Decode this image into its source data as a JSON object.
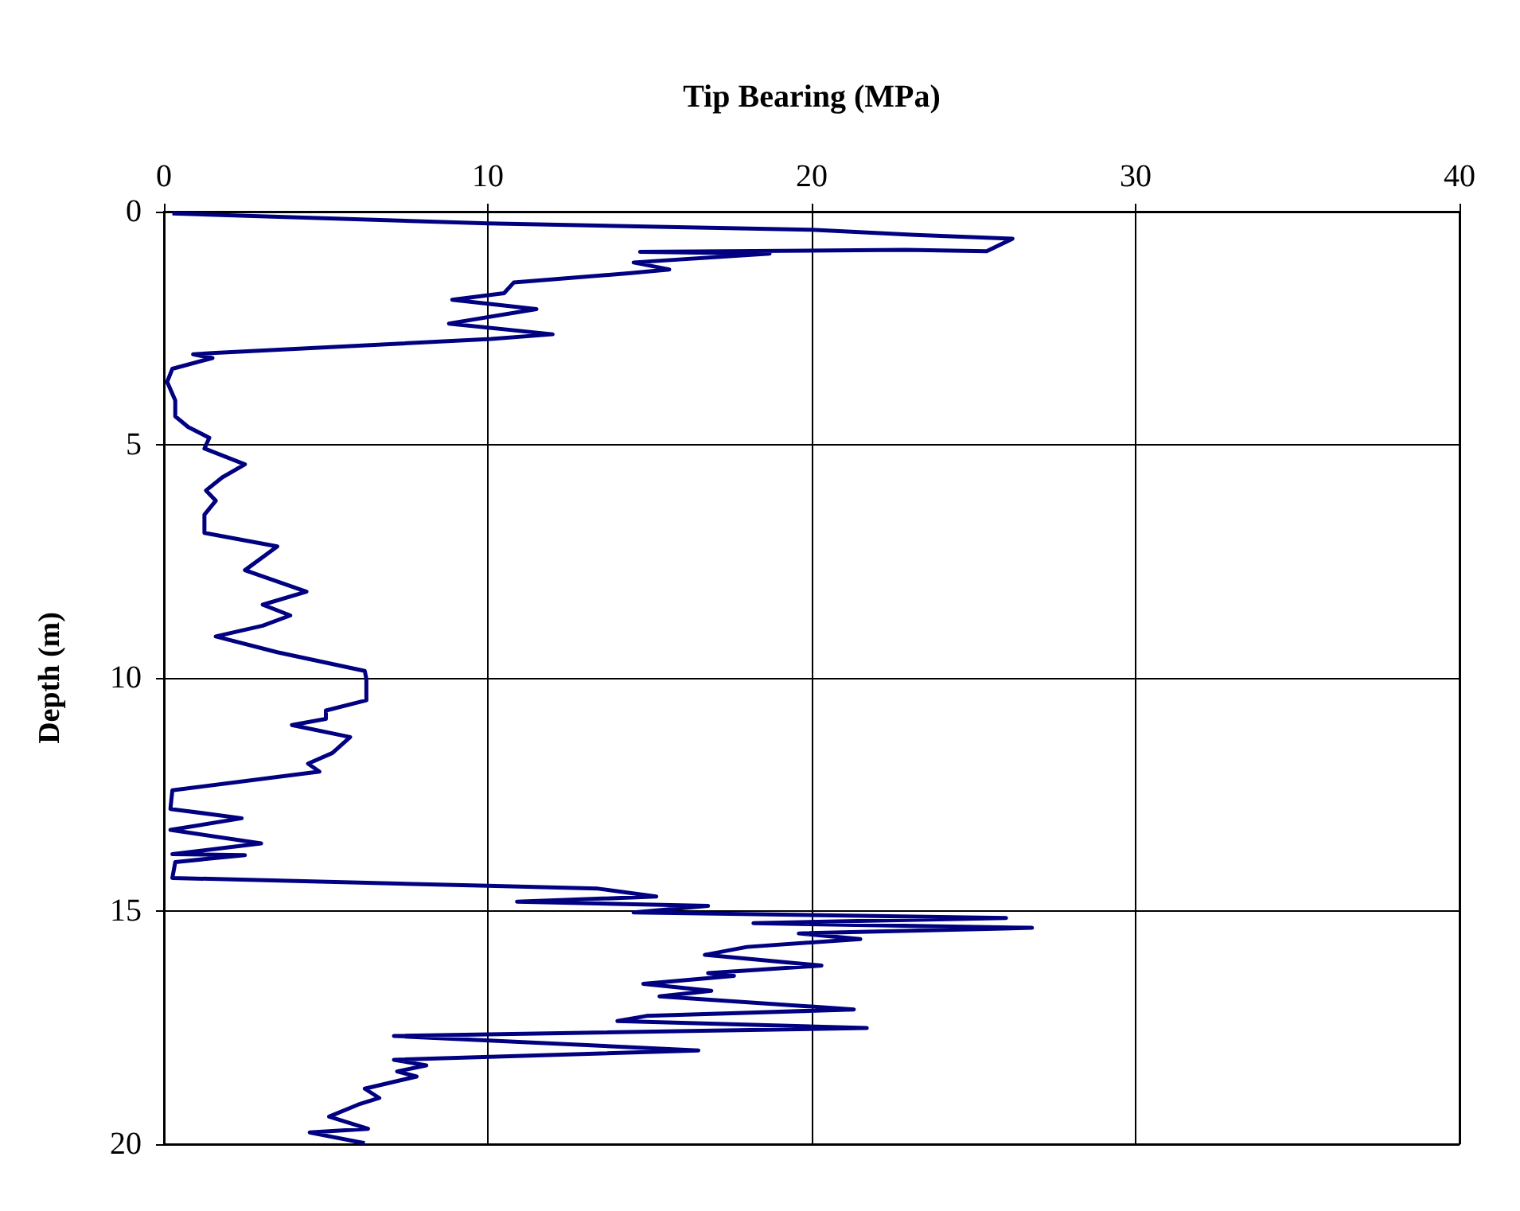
{
  "chart_data": {
    "type": "line",
    "xlabel": "Tip Bearing (MPa)",
    "ylabel": "Depth (m)",
    "xlim": [
      0,
      40
    ],
    "xticks": [
      0,
      10,
      20,
      30,
      40
    ],
    "ylim": [
      20,
      0
    ],
    "yticks": [
      0,
      5,
      10,
      15,
      20
    ],
    "grid": true,
    "marker": "none",
    "line_style": "solid",
    "series": [
      {
        "color": "#000080",
        "x": [
          0.26,
          10,
          20,
          23.2,
          26.2,
          25.4,
          22.9,
          14.7,
          18.7,
          14.5,
          15.6,
          14.4,
          10.8,
          10.5,
          8.9,
          11.5,
          8.8,
          12.0,
          10.1,
          1.6,
          0.9,
          1.5,
          0.26,
          0.1,
          0.35,
          0.35,
          0.75,
          1.4,
          1.25,
          2.5,
          1.8,
          1.3,
          1.6,
          1.25,
          1.25,
          3.5,
          2.5,
          4.4,
          3.05,
          3.9,
          3.05,
          1.6,
          3.5,
          6.2,
          6.25,
          6.25,
          5.0,
          5.0,
          3.95,
          5.75,
          5.2,
          4.45,
          4.8,
          0.26,
          0.2,
          2.4,
          0.2,
          3.0,
          0.26,
          2.5,
          0.35,
          0.26,
          10,
          13.4,
          15.2,
          10.9,
          16.8,
          14.5,
          26.0,
          18.2,
          26.8,
          19.6,
          21.5,
          18.0,
          16.7,
          20.3,
          16.8,
          17.6,
          14.8,
          16.9,
          15.3,
          21.3,
          14.9,
          14.0,
          21.7,
          7.1,
          16.5,
          7.1,
          8.1,
          7.2,
          7.8,
          6.2,
          6.65,
          6.0,
          5.1,
          6.3,
          4.5,
          6.2
        ],
        "values": [
          0.04,
          0.25,
          0.39,
          0.5,
          0.58,
          0.85,
          0.82,
          0.86,
          0.9,
          1.09,
          1.24,
          1.32,
          1.52,
          1.75,
          1.89,
          2.09,
          2.4,
          2.63,
          2.73,
          3.03,
          3.06,
          3.14,
          3.37,
          3.65,
          4.05,
          4.39,
          4.62,
          4.85,
          5.08,
          5.42,
          5.7,
          5.98,
          6.2,
          6.5,
          6.89,
          7.18,
          7.69,
          8.15,
          8.43,
          8.66,
          8.88,
          9.11,
          9.45,
          9.85,
          10.02,
          10.48,
          10.7,
          10.88,
          11.01,
          11.27,
          11.61,
          11.84,
          12.01,
          12.41,
          12.81,
          13.01,
          13.26,
          13.55,
          13.78,
          13.8,
          13.95,
          14.29,
          14.46,
          14.52,
          14.69,
          14.8,
          14.89,
          15.03,
          15.15,
          15.26,
          15.36,
          15.48,
          15.6,
          15.77,
          15.94,
          16.17,
          16.33,
          16.39,
          16.56,
          16.71,
          16.83,
          17.11,
          17.25,
          17.36,
          17.51,
          17.68,
          17.99,
          18.19,
          18.31,
          18.44,
          18.55,
          18.81,
          19.01,
          19.15,
          19.41,
          19.67,
          19.75,
          19.98
        ]
      }
    ]
  }
}
